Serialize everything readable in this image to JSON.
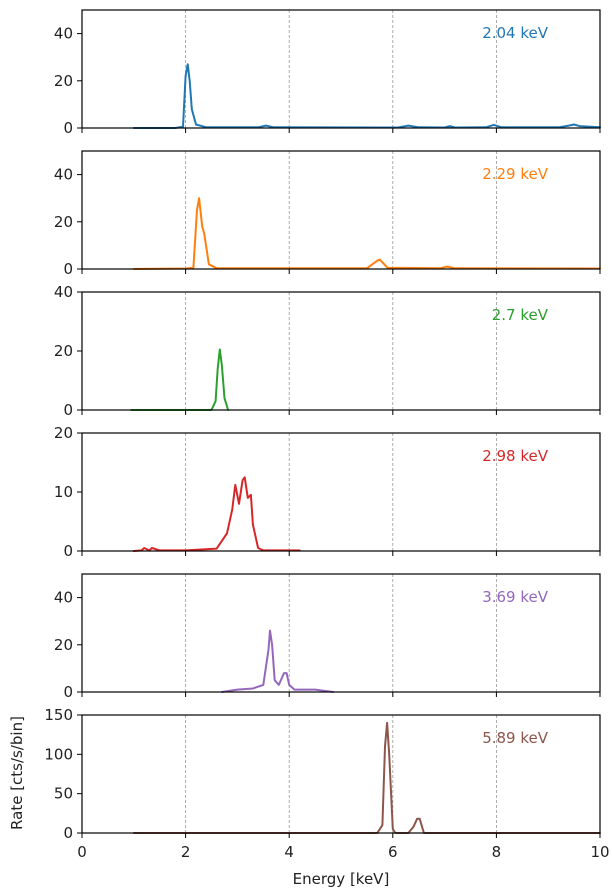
{
  "chart_data": {
    "type": "line",
    "xlabel": "Energy [keV]",
    "ylabel": "Rate [cts/s/bin]",
    "xlim": [
      0,
      10
    ],
    "x_ticks": [
      0,
      2,
      4,
      6,
      8,
      10
    ],
    "grid": "x-axis dashed vertical lines",
    "panels": [
      {
        "label": "2.04 keV",
        "color": "#1f77b4",
        "ylim": [
          0,
          50
        ],
        "y_ticks": [
          0,
          20,
          40
        ],
        "x": [
          1.0,
          1.8,
          1.95,
          2.0,
          2.04,
          2.08,
          2.12,
          2.2,
          2.4,
          3.4,
          3.55,
          3.7,
          6.1,
          6.3,
          6.5,
          7.0,
          7.1,
          7.2,
          7.8,
          7.95,
          8.1,
          9.2,
          9.4,
          9.5,
          9.6,
          10.0
        ],
        "y": [
          0,
          0,
          0.5,
          22,
          27,
          20,
          8,
          1.5,
          0.3,
          0.3,
          1.0,
          0.3,
          0.2,
          1.0,
          0.3,
          0.2,
          0.8,
          0.2,
          0.3,
          1.3,
          0.3,
          0.3,
          1.0,
          1.5,
          0.8,
          0.3
        ]
      },
      {
        "label": "2.29 keV",
        "color": "#ff7f0e",
        "ylim": [
          0,
          50
        ],
        "y_ticks": [
          0,
          20,
          40
        ],
        "x": [
          1.0,
          2.0,
          2.15,
          2.22,
          2.26,
          2.32,
          2.36,
          2.45,
          2.6,
          5.5,
          5.7,
          5.75,
          5.9,
          6.9,
          7.05,
          7.2,
          10.0
        ],
        "y": [
          0,
          0.2,
          0.5,
          25,
          30,
          18,
          15,
          2,
          0.3,
          0.3,
          3.5,
          4,
          0.5,
          0.3,
          1.0,
          0.3,
          0.2
        ]
      },
      {
        "label": "2.7 keV",
        "color": "#2ca02c",
        "ylim": [
          0,
          40
        ],
        "y_ticks": [
          0,
          20,
          40
        ],
        "x": [
          0.95,
          2.5,
          2.58,
          2.62,
          2.66,
          2.7,
          2.75,
          2.82
        ],
        "y": [
          0,
          0,
          3,
          14,
          20.5,
          15,
          4,
          0
        ]
      },
      {
        "label": "2.98 keV",
        "color": "#d62728",
        "ylim": [
          0,
          20
        ],
        "y_ticks": [
          0,
          10,
          20
        ],
        "x": [
          1.0,
          1.15,
          1.2,
          1.3,
          1.35,
          1.5,
          2.0,
          2.6,
          2.8,
          2.9,
          2.96,
          3.03,
          3.1,
          3.14,
          3.2,
          3.26,
          3.3,
          3.4,
          3.5,
          3.6,
          4.2
        ],
        "y": [
          0,
          0.1,
          0.5,
          0.1,
          0.5,
          0.1,
          0.1,
          0.4,
          3,
          7,
          11.2,
          8,
          12,
          12.5,
          9,
          9.5,
          4.5,
          0.5,
          0.1,
          0.1,
          0.1
        ]
      },
      {
        "label": "3.69 keV",
        "color": "#9467bd",
        "ylim": [
          0,
          50
        ],
        "y_ticks": [
          0,
          20,
          40
        ],
        "x": [
          2.7,
          3.0,
          3.3,
          3.5,
          3.6,
          3.63,
          3.67,
          3.72,
          3.8,
          3.9,
          3.95,
          4.0,
          4.1,
          4.5,
          4.85
        ],
        "y": [
          0,
          1,
          1.5,
          3,
          18,
          26,
          20,
          5,
          3,
          8,
          8,
          3,
          1,
          1,
          0
        ]
      },
      {
        "label": "5.89 keV",
        "color": "#8c564b",
        "ylim": [
          0,
          150
        ],
        "y_ticks": [
          0,
          50,
          100,
          150
        ],
        "x": [
          1.0,
          4.0,
          5.7,
          5.8,
          5.85,
          5.89,
          5.93,
          6.0,
          6.05,
          6.3,
          6.4,
          6.47,
          6.52,
          6.6,
          10.0
        ],
        "y": [
          0,
          0,
          0,
          10,
          110,
          140,
          100,
          5,
          0,
          0,
          8,
          18,
          18,
          0,
          0
        ]
      }
    ]
  }
}
